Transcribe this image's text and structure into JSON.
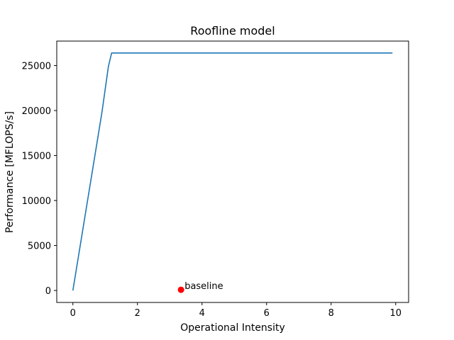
{
  "chart_data": {
    "type": "line",
    "title": "Roofline model",
    "xlabel": "Operational Intensity",
    "ylabel": "Performance [MFLOPS/s]",
    "xlim": [
      -0.5,
      10.4
    ],
    "ylim": [
      -1330,
      27720
    ],
    "xticks": [
      0,
      2,
      4,
      6,
      8,
      10
    ],
    "yticks": [
      0,
      5000,
      10000,
      15000,
      20000,
      25000
    ],
    "grid": false,
    "colors": {
      "roof": "#1f77b4",
      "point": "#ff0000"
    },
    "series": [
      {
        "x": [
          0,
          0.3,
          0.6,
          0.9,
          1.1,
          1.2,
          9.9
        ],
        "y": [
          0,
          6600,
          13200,
          19800,
          24900,
          26400,
          26400
        ]
      }
    ],
    "points": [
      {
        "label": "baseline",
        "x": 3.35,
        "y": 80
      }
    ]
  }
}
